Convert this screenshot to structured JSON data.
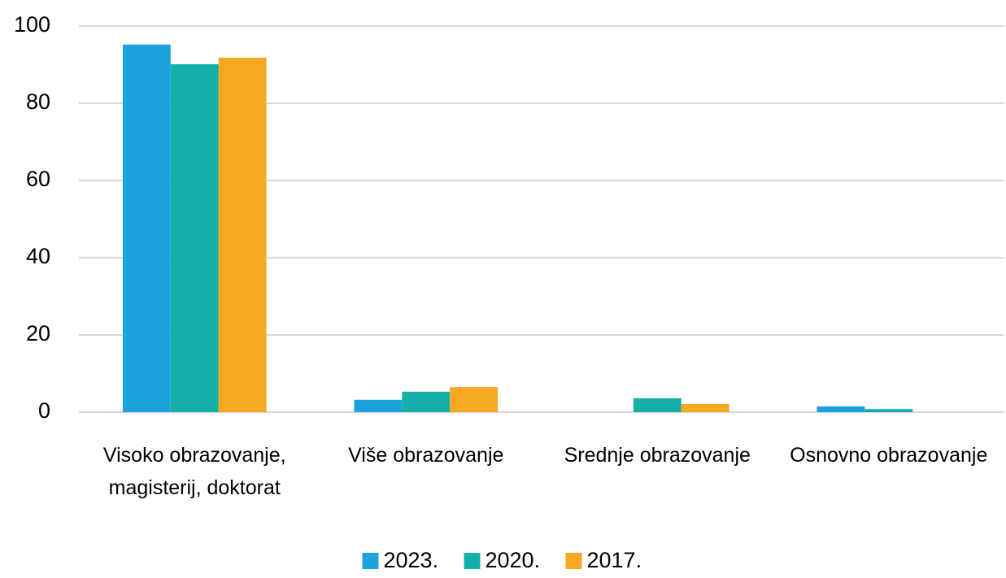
{
  "chart_data": {
    "type": "bar",
    "categories": [
      "Visoko obrazovanje, magisterij, doktorat",
      "Više obrazovanje",
      "Srednje obrazovanje",
      "Osnovno obrazovanje"
    ],
    "series": [
      {
        "name": "2023.",
        "color": "#1ea2dc",
        "values": [
          95.2,
          3.2,
          0,
          1.5
        ]
      },
      {
        "name": "2020.",
        "color": "#14b0a8",
        "values": [
          90.1,
          5.3,
          3.6,
          0.8
        ]
      },
      {
        "name": "2017.",
        "color": "#f7a823",
        "values": [
          91.8,
          6.5,
          2.1,
          0
        ]
      }
    ],
    "ylim": [
      0,
      100
    ],
    "yticks": [
      0,
      20,
      40,
      60,
      80,
      100
    ],
    "grid": true,
    "legend": "bottom"
  }
}
